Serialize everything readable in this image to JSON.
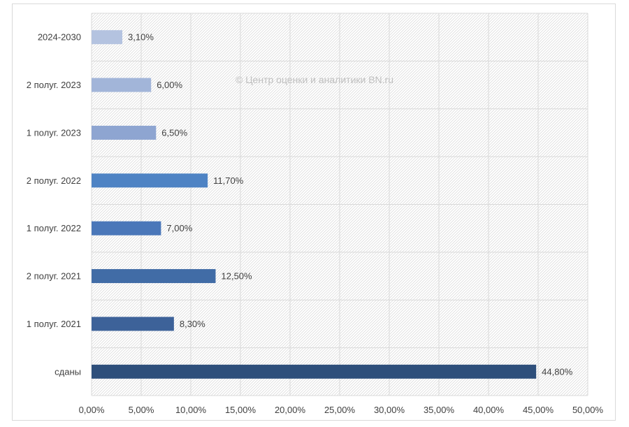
{
  "watermark": "© Центр оценки и аналитики BN.ru",
  "chart_data": {
    "type": "bar",
    "orientation": "horizontal",
    "categories": [
      "2024-2030",
      "2 полуг. 2023",
      "1 полуг. 2023",
      "2 полуг. 2022",
      "1 полуг. 2022",
      "2 полуг. 2021",
      "1 полуг. 2021",
      "сданы"
    ],
    "values": [
      3.1,
      6.0,
      6.5,
      11.7,
      7.0,
      12.5,
      8.3,
      44.8
    ],
    "value_labels": [
      "3,10%",
      "6,00%",
      "6,50%",
      "11,70%",
      "7,00%",
      "12,50%",
      "8,30%",
      "44,80%"
    ],
    "bar_colors": [
      "#b4c3e0",
      "#a2b5d9",
      "#8ea5d1",
      "#4e83c4",
      "#4a77b9",
      "#416ca6",
      "#3d6299",
      "#2e4f7b"
    ],
    "x_ticks": [
      "0,00%",
      "5,00%",
      "10,00%",
      "15,00%",
      "20,00%",
      "25,00%",
      "30,00%",
      "35,00%",
      "40,00%",
      "45,00%",
      "50,00%"
    ],
    "xlim": [
      0,
      50
    ],
    "grid": true,
    "title": "",
    "xlabel": "",
    "ylabel": ""
  }
}
